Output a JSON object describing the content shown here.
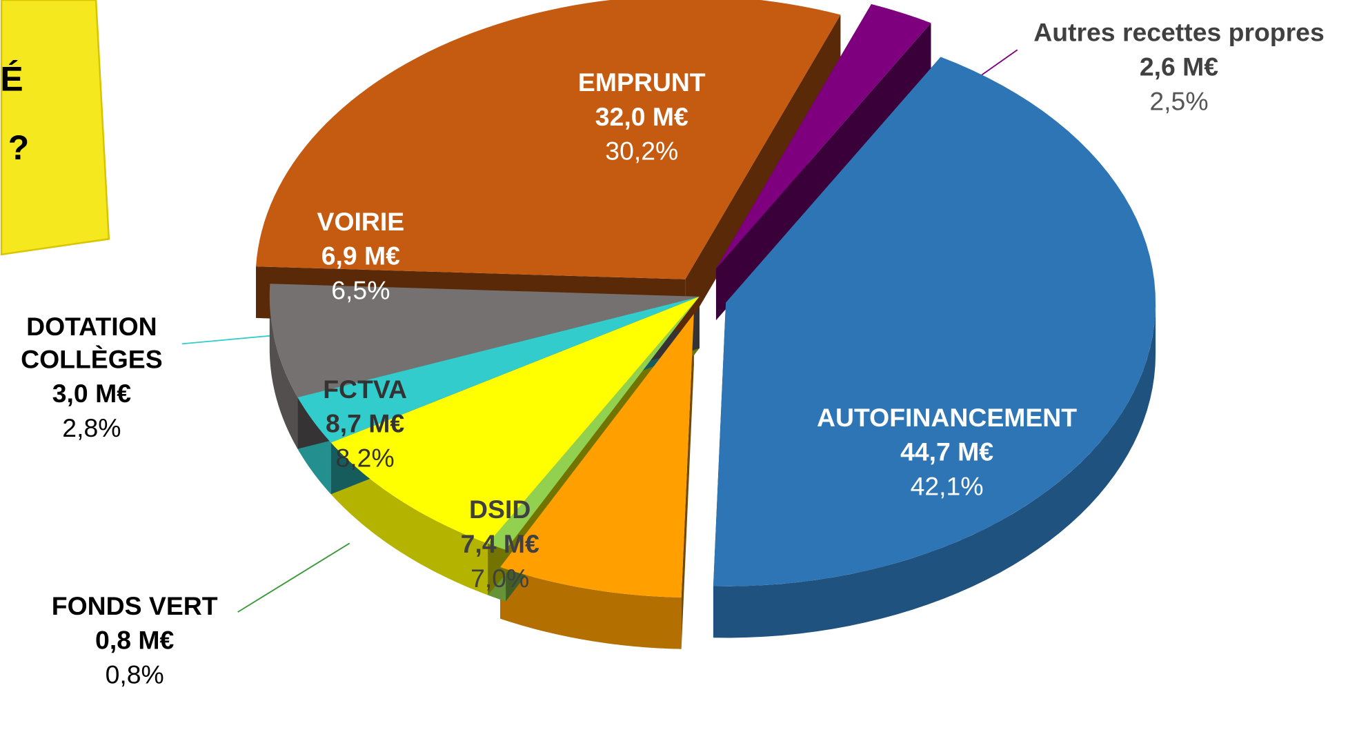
{
  "chart_data": {
    "type": "pie",
    "categories": [
      "AUTOFINANCEMENT",
      "DSID",
      "FONDS VERT",
      "FCTVA",
      "DOTATION COLLÈGES",
      "VOIRIE",
      "EMPRUNT",
      "Autres recettes propres"
    ],
    "values": [
      44.7,
      7.4,
      0.8,
      8.7,
      3.0,
      6.9,
      32.0,
      2.6
    ],
    "value_labels": [
      "44,7 M€",
      "7,4 M€",
      "0,8 M€",
      "8,7 M€",
      "3,0 M€",
      "6,9 M€",
      "32,0 M€",
      "2,6 M€"
    ],
    "share_labels": [
      "42,1%",
      "7,0%",
      "0,8%",
      "8,2%",
      "2,8%",
      "6,5%",
      "30,2%",
      "2,5%"
    ],
    "colors": [
      "#2e75b6",
      "#ff9f00",
      "#92d050",
      "#ffff00",
      "#33cccc",
      "#767171",
      "#c55a11",
      "#7f007f"
    ],
    "note_fragments": [
      "É",
      "?"
    ]
  }
}
